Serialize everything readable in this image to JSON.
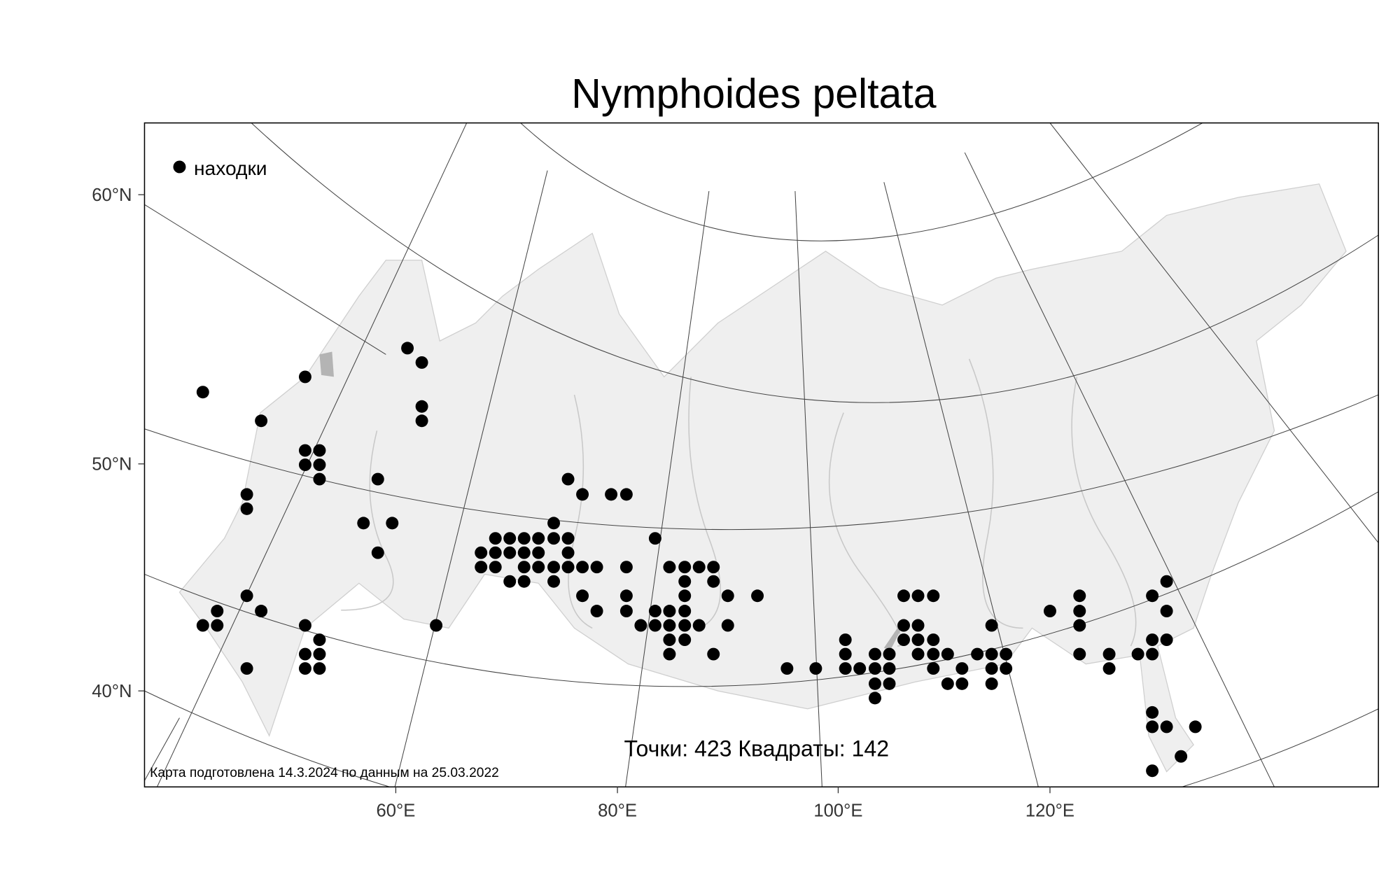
{
  "title": "Nymphoides peltata",
  "legend": {
    "label": "находки",
    "marker_color": "#000000"
  },
  "stats": "Точки: 423 Квадраты: 142",
  "footer_note": "Карта подготовлена 14.3.2024 по данным на 25.03.2022",
  "axes": {
    "lat_labels": [
      "60°N",
      "50°N",
      "40°N"
    ],
    "lon_labels": [
      "60°E",
      "80°E",
      "100°E",
      "120°E"
    ]
  },
  "colors": {
    "land": "#efefef",
    "rivers": "#c8c8c8",
    "lakes": "#b4b4b4",
    "grid": "#444444",
    "points": "#000000"
  }
}
